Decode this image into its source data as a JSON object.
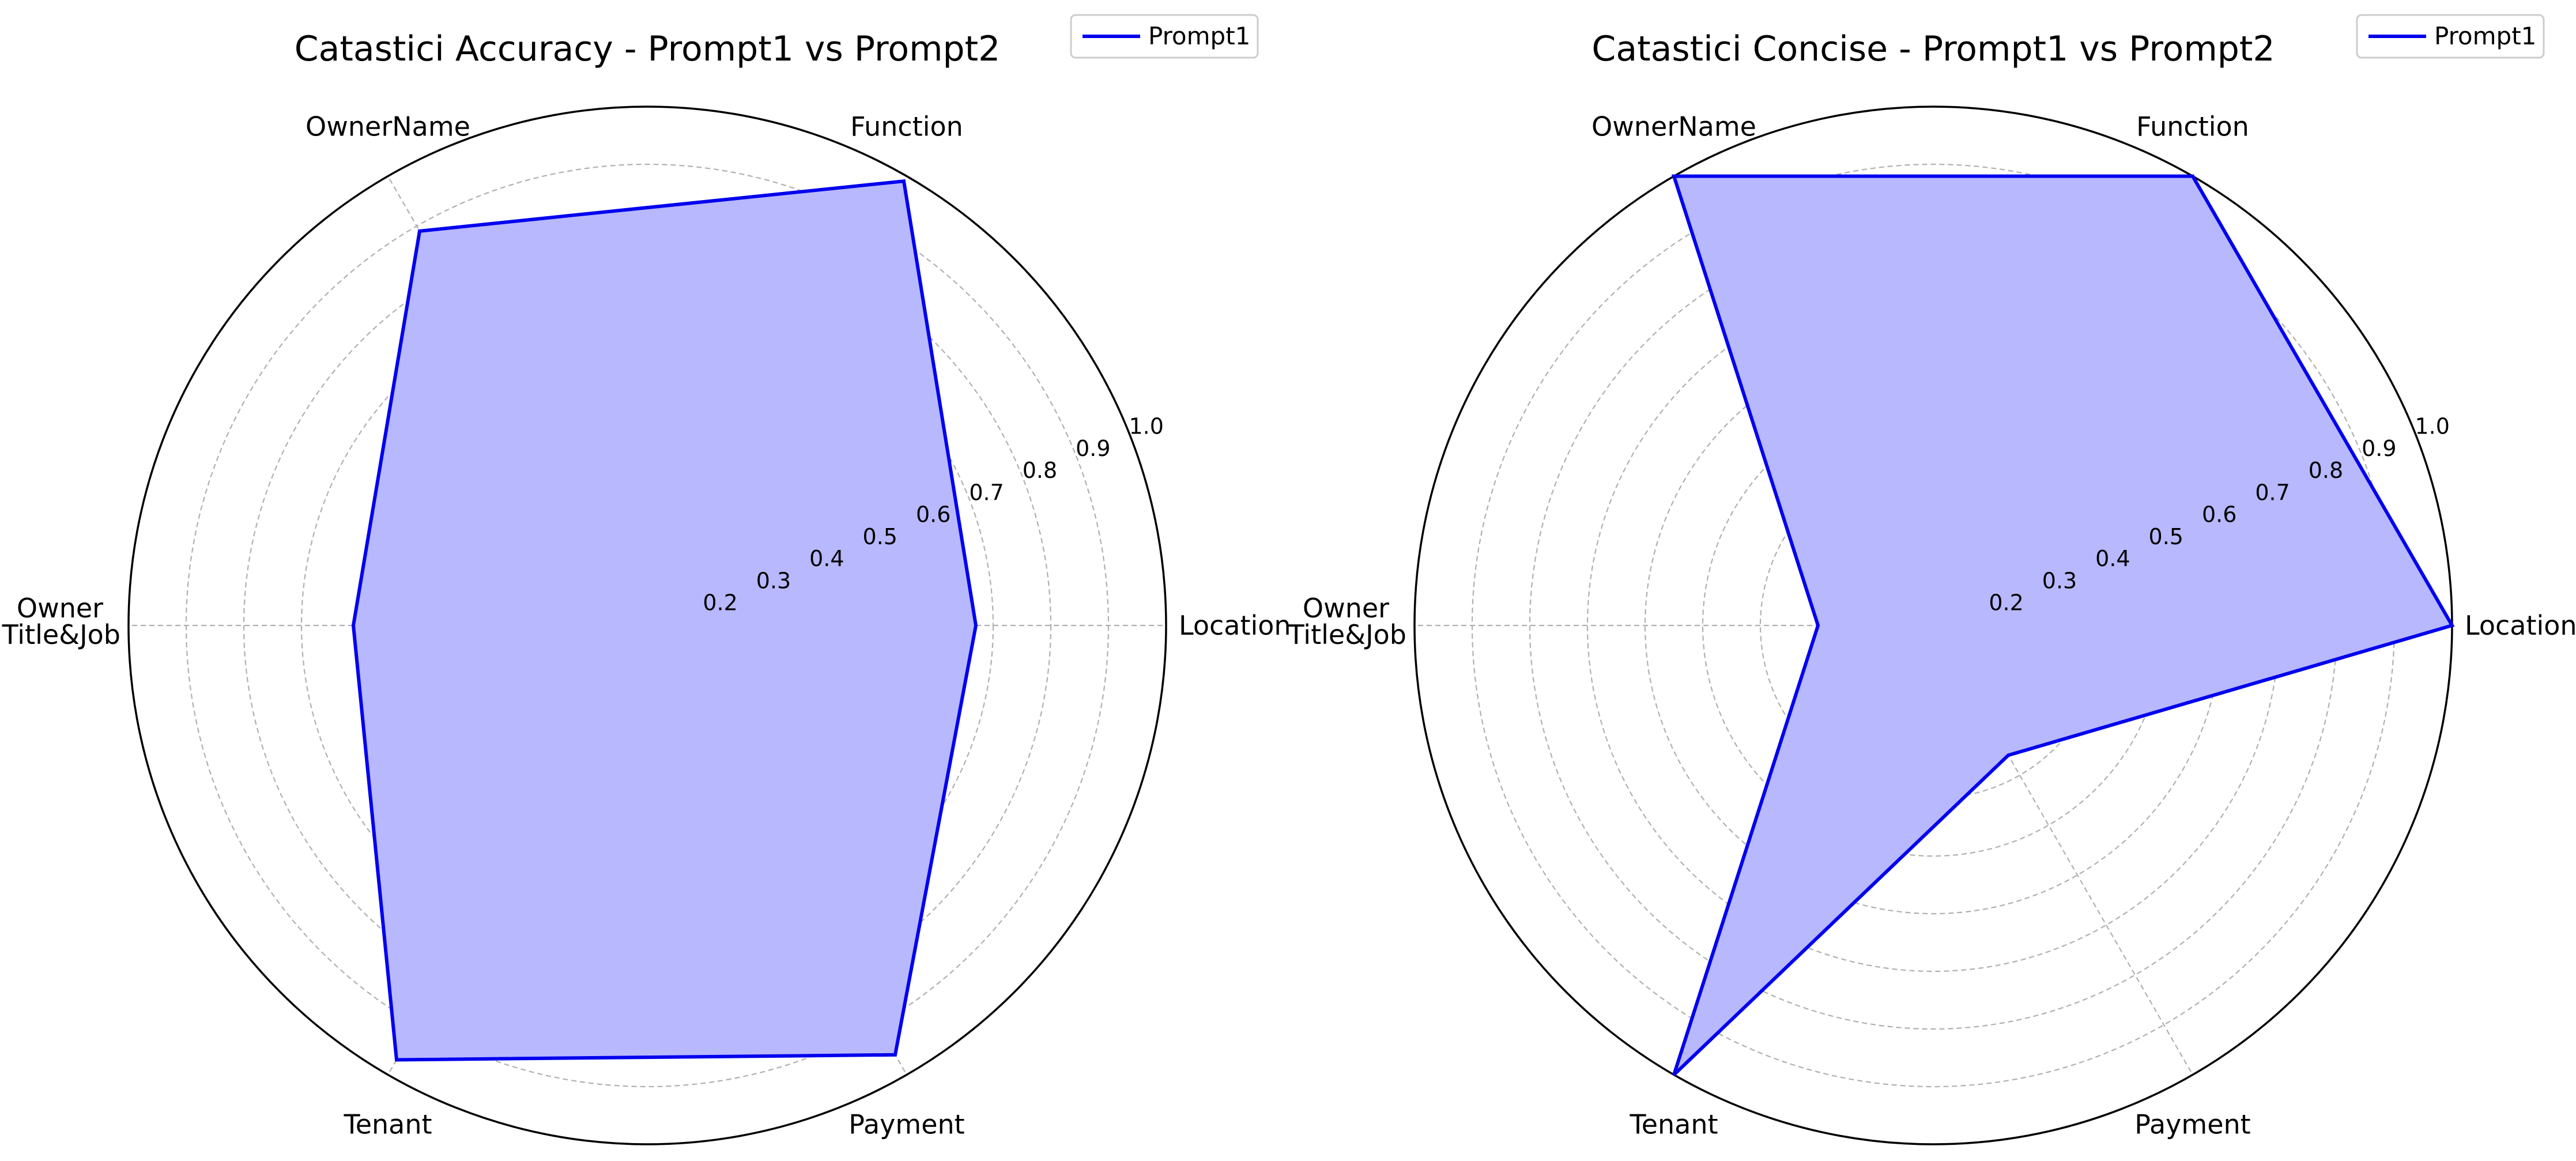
{
  "chart_data": [
    {
      "type": "radar",
      "title": "Catastici Accuracy - Prompt1 vs Prompt2",
      "categories": [
        "Location",
        "Function",
        "OwnerName",
        "Owner\nTitle&Job",
        "Tenant",
        "Payment"
      ],
      "r_range": [
        0.1,
        1.0
      ],
      "r_ticks": [
        "0.2",
        "0.3",
        "0.4",
        "0.5",
        "0.6",
        "0.7",
        "0.8",
        "0.9",
        "1.0"
      ],
      "grid": true,
      "legend_position": "top-right",
      "series": [
        {
          "name": "Prompt1",
          "color": "#0000ee",
          "fill": "#b8b8ff",
          "values": [
            0.67,
            0.99,
            0.89,
            0.61,
            0.97,
            0.96
          ]
        }
      ]
    },
    {
      "type": "radar",
      "title": "Catastici Concise - Prompt1 vs Prompt2",
      "categories": [
        "Location",
        "Function",
        "OwnerName",
        "Owner\nTitle&Job",
        "Tenant",
        "Payment"
      ],
      "r_range": [
        0.1,
        1.0
      ],
      "r_ticks": [
        "0.2",
        "0.3",
        "0.4",
        "0.5",
        "0.6",
        "0.7",
        "0.8",
        "0.9",
        "1.0"
      ],
      "grid": true,
      "legend_position": "top-right",
      "series": [
        {
          "name": "Prompt1",
          "color": "#0000ee",
          "fill": "#b8b8ff",
          "values": [
            1.0,
            1.0,
            1.0,
            0.3,
            1.0,
            0.36
          ]
        }
      ]
    }
  ]
}
